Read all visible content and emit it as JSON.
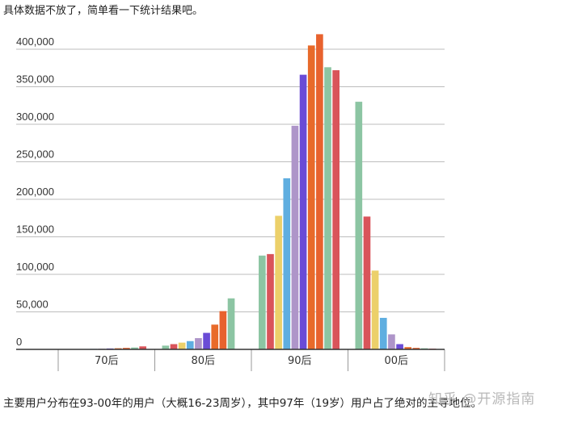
{
  "intro_text": "具体数据不放了，简单看一下统计结果吧。",
  "footer_text": "主要用户分布在93-00年的用户（大概16-23周岁），其中97年（19岁）用户占了绝对的主导地位。",
  "watermark": "知乎 @开源指南",
  "colors": [
    "#8cc5a3",
    "#d9545a",
    "#ecd06a",
    "#5faee0",
    "#ae95c9",
    "#6a4bd6",
    "#e86a2a",
    "#e8622e",
    "#8cc5a3",
    "#d9545a"
  ],
  "chart_data": {
    "type": "bar",
    "categories": [
      "70后",
      "80后",
      "90后",
      "00后"
    ],
    "series_per_group": 10,
    "values": [
      [
        300,
        400,
        500,
        700,
        900,
        1200,
        1500,
        2000,
        2500,
        4000
      ],
      [
        5000,
        7000,
        9000,
        11000,
        15000,
        22000,
        33000,
        51000,
        68000,
        0
      ],
      [
        125000,
        127000,
        178000,
        228000,
        298000,
        366000,
        405000,
        420000,
        376000,
        372000
      ],
      [
        330000,
        177000,
        105000,
        42000,
        20000,
        7000,
        3000,
        2000,
        1500,
        1000
      ]
    ],
    "ylim": [
      0,
      400000
    ],
    "yticks": [
      "0",
      "50,000",
      "100,000",
      "150,000",
      "200,000",
      "250,000",
      "300,000",
      "350,000",
      "400,000"
    ],
    "ytick_values": [
      0,
      50000,
      100000,
      150000,
      200000,
      250000,
      300000,
      350000,
      400000
    ],
    "grid": true
  }
}
